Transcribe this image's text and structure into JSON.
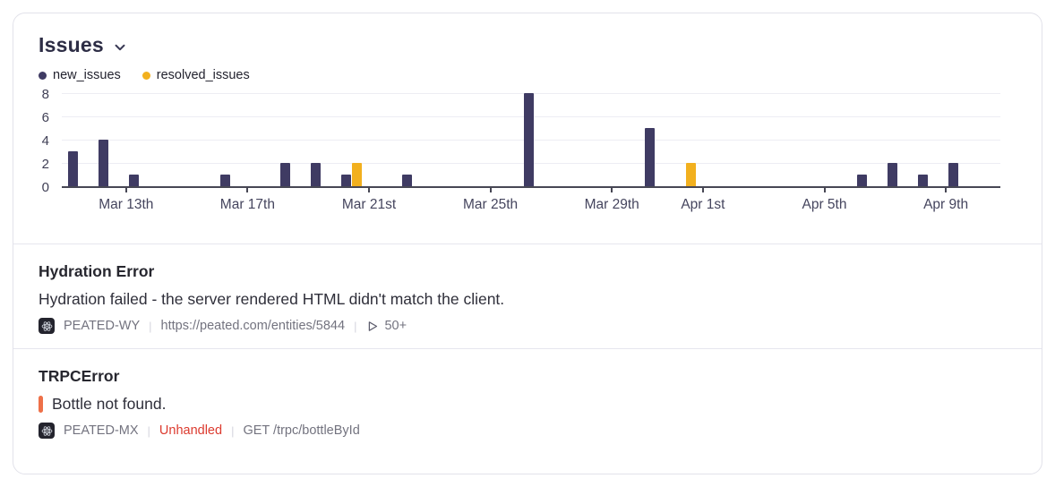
{
  "widget": {
    "title": "Issues",
    "legend": [
      {
        "label": "new_issues",
        "color": "#3f3b63"
      },
      {
        "label": "resolved_issues",
        "color": "#f2b01e"
      }
    ]
  },
  "chart_data": {
    "type": "bar",
    "title": "Issues",
    "ylim": [
      0,
      8
    ],
    "y_ticks": [
      0,
      2,
      4,
      6,
      8
    ],
    "x_ticks": [
      {
        "label": "Mar 13th",
        "date": "Mar 13"
      },
      {
        "label": "Mar 17th",
        "date": "Mar 17"
      },
      {
        "label": "Mar 21st",
        "date": "Mar 21"
      },
      {
        "label": "Mar 25th",
        "date": "Mar 25"
      },
      {
        "label": "Mar 29th",
        "date": "Mar 29"
      },
      {
        "label": "Apr 1st",
        "date": "Apr 1"
      },
      {
        "label": "Apr 5th",
        "date": "Apr 5"
      },
      {
        "label": "Apr 9th",
        "date": "Apr 9"
      }
    ],
    "series": [
      {
        "name": "new_issues",
        "color": "#3f3b63",
        "points": [
          [
            "Mar 11",
            3
          ],
          [
            "Mar 12",
            4
          ],
          [
            "Mar 13",
            1
          ],
          [
            "Mar 16",
            1
          ],
          [
            "Mar 18",
            2
          ],
          [
            "Mar 19",
            2
          ],
          [
            "Mar 20",
            1
          ],
          [
            "Mar 22",
            1
          ],
          [
            "Mar 26",
            8
          ],
          [
            "Mar 30",
            5
          ],
          [
            "Apr 6",
            1
          ],
          [
            "Apr 7",
            2
          ],
          [
            "Apr 8",
            1
          ],
          [
            "Apr 9",
            2
          ]
        ]
      },
      {
        "name": "resolved_issues",
        "color": "#f2b01e",
        "points": [
          [
            "Mar 20",
            2
          ],
          [
            "Mar 31",
            2
          ]
        ]
      }
    ],
    "grid": true,
    "legend_position": "top-left"
  },
  "meta_separator": "|",
  "issues": [
    {
      "title": "Hydration Error",
      "message": "Hydration failed - the server rendered HTML didn't match the client.",
      "project": "PEATED-WY",
      "project_icon": "react-icon",
      "url": "https://peated.com/entities/5844",
      "replays": "50+"
    },
    {
      "title": "TRPCError",
      "message": "Bottle not found.",
      "level_color": "#ee7048",
      "project": "PEATED-MX",
      "project_icon": "react-icon",
      "status": "Unhandled",
      "status_color": "#dc3b2f",
      "transaction": "GET /trpc/bottleById"
    }
  ]
}
